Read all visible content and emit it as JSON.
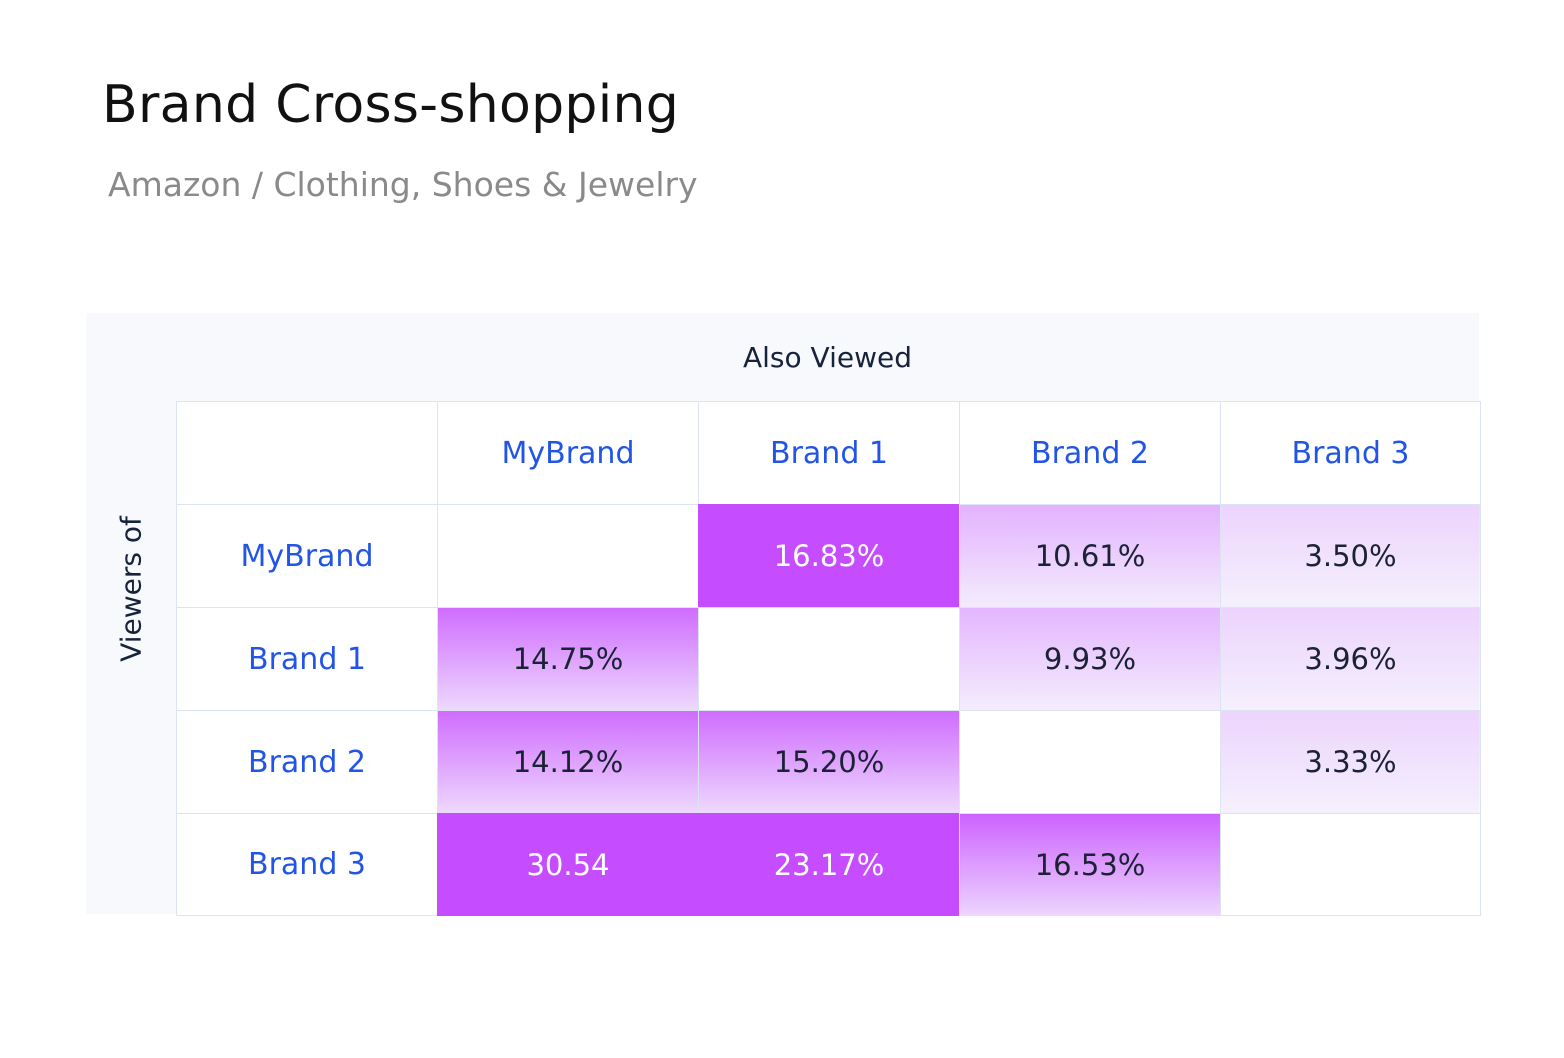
{
  "title": "Brand Cross-shopping",
  "subtitle": "Amazon / Clothing, Shoes & Jewelry",
  "colors": {
    "title": "#111111",
    "subtitle": "#8a8a8a",
    "header_text": "#2255e6",
    "value_text": "#1c2236",
    "strong": "#c64cff",
    "panel_bg": "#f7f9fd",
    "grid_line": "#dde3f3"
  },
  "chart_data": {
    "type": "heatmap",
    "xlabel": "Also Viewed",
    "ylabel": "Viewers of",
    "columns": [
      "MyBrand",
      "Brand 1",
      "Brand 2",
      "Brand 3"
    ],
    "rows": [
      "MyBrand",
      "Brand 1",
      "Brand 2",
      "Brand 3"
    ],
    "cells": [
      [
        null,
        {
          "label": "16.83%",
          "value": 16.83,
          "intensity": 1.0
        },
        {
          "label": "10.61%",
          "value": 10.61,
          "intensity": 0.22
        },
        {
          "label": "3.50%",
          "value": 3.5,
          "intensity": 0.06
        }
      ],
      [
        {
          "label": "14.75%",
          "value": 14.75,
          "intensity": 0.55
        },
        null,
        {
          "label": "9.93%",
          "value": 9.93,
          "intensity": 0.2
        },
        {
          "label": "3.96%",
          "value": 3.96,
          "intensity": 0.06
        }
      ],
      [
        {
          "label": "14.12%",
          "value": 14.12,
          "intensity": 0.55
        },
        {
          "label": "15.20%",
          "value": 15.2,
          "intensity": 0.55
        },
        null,
        {
          "label": "3.33%",
          "value": 3.33,
          "intensity": 0.05
        }
      ],
      [
        {
          "label": "30.54",
          "value": 30.54,
          "intensity": 1.0
        },
        {
          "label": "23.17%",
          "value": 23.17,
          "intensity": 1.0
        },
        {
          "label": "16.53%",
          "value": 16.53,
          "intensity": 0.6
        },
        null
      ]
    ]
  }
}
